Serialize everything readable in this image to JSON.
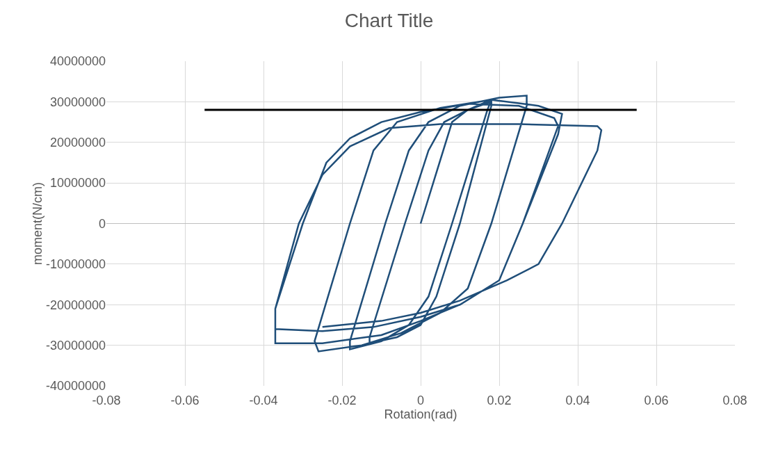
{
  "chart_data": {
    "type": "line",
    "title": "Chart Title",
    "xlabel": "Rotation(rad)",
    "ylabel": "moment(N/cm)",
    "xlim": [
      -0.08,
      0.08
    ],
    "xticks": [
      -0.08,
      -0.06,
      -0.04,
      -0.02,
      0,
      0.02,
      0.04,
      0.06,
      0.08
    ],
    "ylim": [
      -40000000,
      40000000
    ],
    "yticks": [
      -40000000,
      -30000000,
      -20000000,
      -10000000,
      0,
      10000000,
      20000000,
      30000000,
      40000000
    ],
    "grid": true,
    "marker": "none",
    "line_style": "solid",
    "series": [
      {
        "color": "#1f4e79",
        "x": [
          0,
          0.008,
          0.012,
          0.018,
          0.018,
          0.01,
          0.004,
          0.0,
          -0.006,
          -0.013,
          -0.013,
          -0.004,
          0.002,
          0.006,
          0.012,
          0.018,
          0.017,
          0.008,
          0.002,
          -0.003,
          -0.01,
          -0.018,
          -0.018,
          -0.009,
          -0.003,
          0.002,
          0.01,
          0.02,
          0.027,
          0.027,
          0.018,
          0.012,
          0.005,
          -0.005,
          -0.015,
          -0.026,
          -0.027,
          -0.018,
          -0.012,
          -0.006,
          0.005,
          0.018,
          0.03,
          0.036,
          0.035,
          0.026,
          0.02,
          0.01,
          0.0,
          -0.01,
          -0.025,
          -0.037,
          -0.037,
          -0.03,
          -0.024,
          -0.018,
          -0.01,
          0.0,
          0.012,
          0.025,
          0.034,
          0.035,
          0.026,
          0.02,
          0.01,
          0.0,
          -0.012,
          -0.025,
          -0.037,
          -0.037,
          -0.031,
          -0.025,
          -0.018,
          -0.008,
          0.005,
          0.025,
          0.045,
          0.046,
          0.045,
          0.036,
          0.03,
          0.022,
          0.01,
          0.0,
          -0.01,
          -0.025
        ],
        "values": [
          0,
          25000000,
          28000000,
          30000000,
          29000000,
          0,
          -18000000,
          -25000000,
          -28000000,
          -29500000,
          -28000000,
          0,
          18000000,
          25000000,
          28000000,
          30500000,
          28000000,
          0,
          -18000000,
          -25000000,
          -29000000,
          -31000000,
          -29000000,
          0,
          18000000,
          25000000,
          29000000,
          31000000,
          31500000,
          29000000,
          0,
          -16000000,
          -22000000,
          -27000000,
          -30000000,
          -31500000,
          -29000000,
          0,
          18000000,
          25000000,
          28500000,
          30500000,
          29000000,
          27000000,
          22000000,
          0,
          -14000000,
          -20000000,
          -24000000,
          -27500000,
          -29500000,
          -29500000,
          -21000000,
          0,
          15000000,
          21000000,
          25000000,
          27500000,
          29500000,
          29000000,
          26000000,
          24000000,
          0,
          -14000000,
          -20000000,
          -23000000,
          -25500000,
          -26500000,
          -26000000,
          -21000000,
          0,
          12000000,
          19000000,
          23500000,
          24500000,
          24500000,
          24000000,
          23000000,
          18000000,
          0,
          -10000000,
          -14000000,
          -19000000,
          -22000000,
          -24000000,
          -25500000
        ]
      },
      {
        "color": "#000000",
        "x": [
          -0.055,
          0.055
        ],
        "values": [
          28000000,
          28000000
        ]
      }
    ]
  }
}
